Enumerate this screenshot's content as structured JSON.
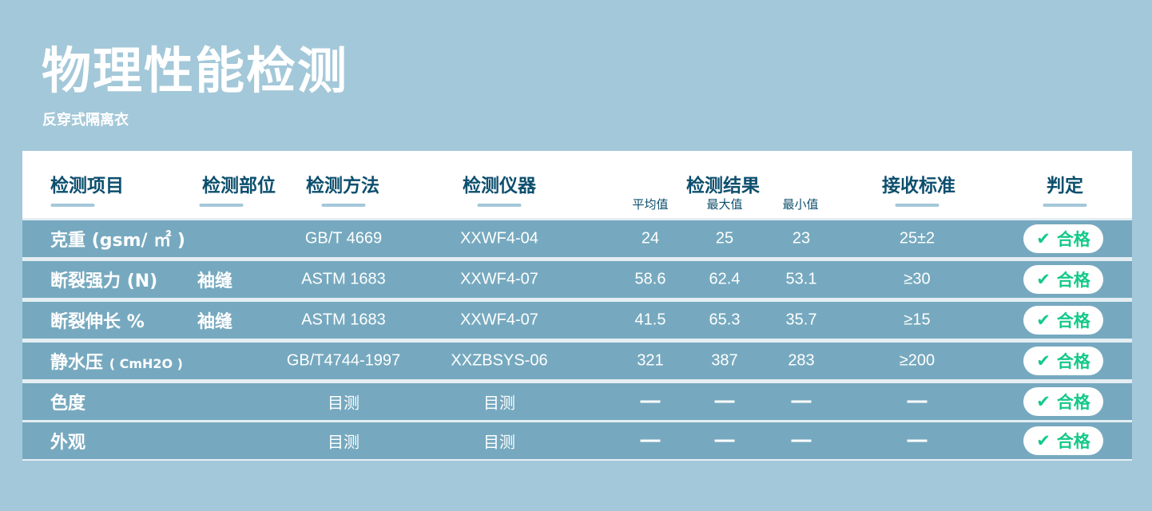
{
  "title": "物理性能检测",
  "subtitle": "反穿式隔离衣",
  "headers": {
    "item": "检测项目",
    "part": "检测部位",
    "method": "检测方法",
    "instrument": "检测仪器",
    "result": "检测结果",
    "avg": "平均值",
    "max": "最大值",
    "min": "最小值",
    "standard": "接收标准",
    "judge": "判定"
  },
  "pass_color": "#14c98a",
  "rows": [
    {
      "item": "克重",
      "unit": "(gsm/ ㎡ )",
      "part": "",
      "method": "GB/T 4669",
      "instrument": "XXWF4-04",
      "avg": "24",
      "max": "25",
      "min": "23",
      "standard": "25±2",
      "judge": "合格"
    },
    {
      "item": "断裂强力",
      "unit": "(N)",
      "part": "袖缝",
      "method": "ASTM 1683",
      "instrument": "XXWF4-07",
      "avg": "58.6",
      "max": "62.4",
      "min": "53.1",
      "standard": "≥30",
      "judge": "合格"
    },
    {
      "item": "断裂伸长",
      "unit": "%",
      "part": "袖缝",
      "method": "ASTM 1683",
      "instrument": "XXWF4-07",
      "avg": "41.5",
      "max": "65.3",
      "min": "35.7",
      "standard": "≥15",
      "judge": "合格"
    },
    {
      "item": "静水压",
      "unit": "( CmH2O )",
      "part": "",
      "method": "GB/T4744-1997",
      "instrument": "XXZBSYS-06",
      "avg": "321",
      "max": "387",
      "min": "283",
      "standard": "≥200",
      "judge": "合格"
    },
    {
      "item": "色度",
      "unit": "",
      "part": "",
      "method": "目测",
      "instrument": "目测",
      "avg": "—",
      "max": "—",
      "min": "—",
      "standard": "—",
      "judge": "合格"
    },
    {
      "item": "外观",
      "unit": "",
      "part": "",
      "method": "目测",
      "instrument": "目测",
      "avg": "—",
      "max": "—",
      "min": "—",
      "standard": "—",
      "judge": "合格"
    }
  ]
}
